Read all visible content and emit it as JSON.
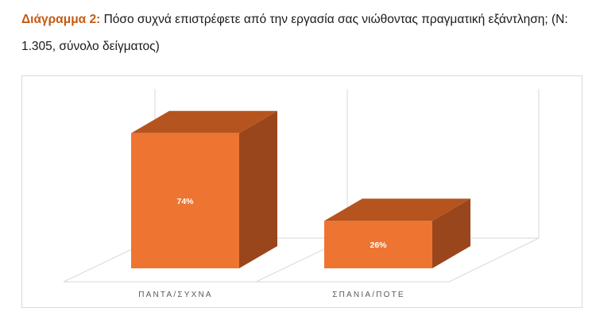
{
  "caption": {
    "label": "Διάγραμμα 2:",
    "text": "Πόσο συχνά επιστρέφετε από την εργασία σας νιώθοντας πραγματική εξάντληση; (Ν: 1.305, σύνολο δείγματος)"
  },
  "colors": {
    "front": "#ed7431",
    "top": "#b5541f",
    "side": "#9a461c"
  },
  "chart_data": {
    "type": "bar",
    "style": "3d",
    "categories": [
      "ΠΑΝΤΑ/ΣΥΧΝΑ",
      "ΣΠΑΝΙΑ/ΠΟΤΕ"
    ],
    "values": [
      74,
      26
    ],
    "data_labels": [
      "74%",
      "26%"
    ],
    "ylim": [
      0,
      100
    ],
    "grid": false,
    "legend": "none"
  }
}
